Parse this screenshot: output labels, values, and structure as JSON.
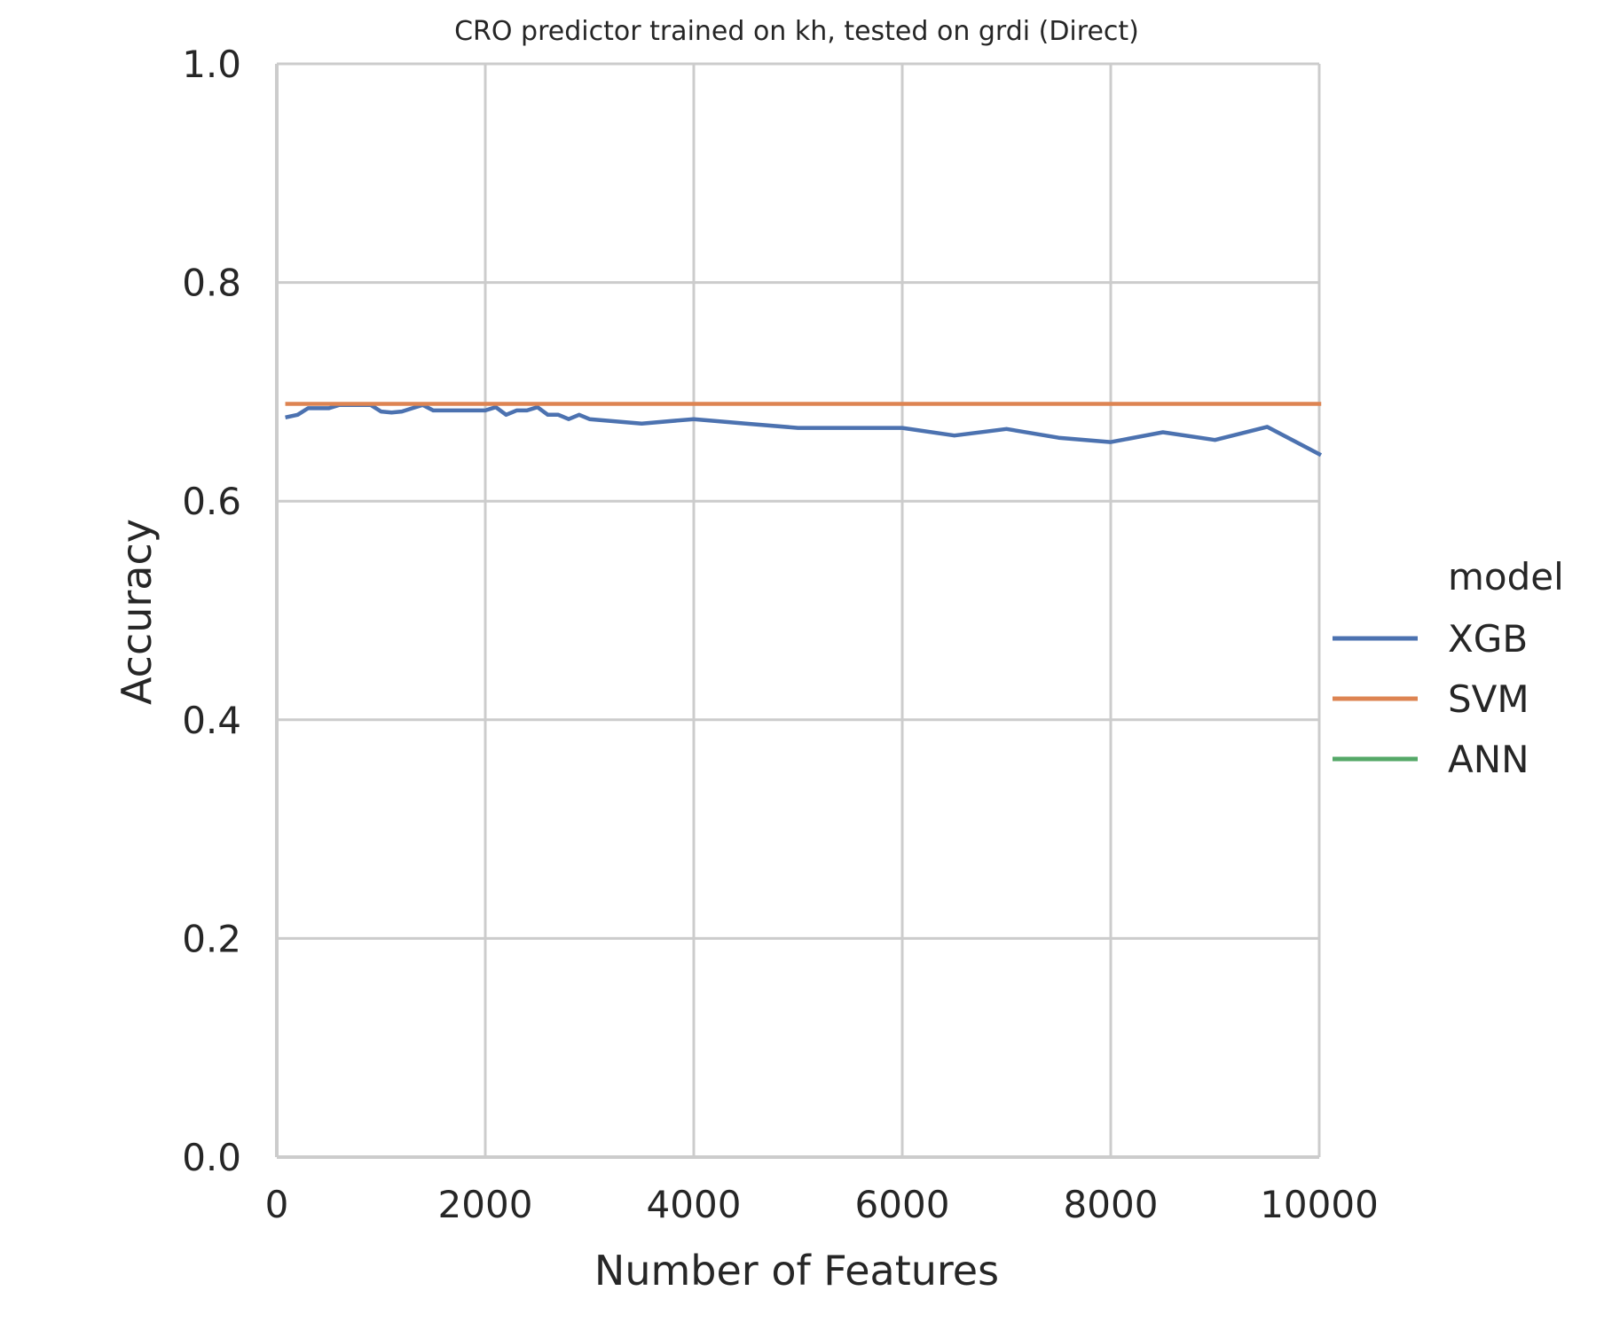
{
  "chart_data": {
    "type": "line",
    "title": "CRO predictor trained on kh, tested on grdi (Direct)",
    "xlabel": "Number of Features",
    "ylabel": "Accuracy",
    "xlim": [
      0,
      10000
    ],
    "ylim": [
      0.0,
      1.0
    ],
    "xticks": [
      0,
      2000,
      4000,
      6000,
      8000,
      10000
    ],
    "xtick_labels": [
      "0",
      "2000",
      "4000",
      "6000",
      "8000",
      "10000"
    ],
    "yticks": [
      0.0,
      0.2,
      0.4,
      0.6,
      0.8,
      1.0
    ],
    "ytick_labels": [
      "0.0",
      "0.2",
      "0.4",
      "0.6",
      "0.8",
      "1.0"
    ],
    "grid": true,
    "legend": {
      "title": "model",
      "placement": "right"
    },
    "series": [
      {
        "name": "XGB",
        "color": "#4c72b0",
        "x": [
          100,
          200,
          300,
          400,
          500,
          600,
          700,
          800,
          900,
          1000,
          1100,
          1200,
          1300,
          1400,
          1500,
          1600,
          1700,
          1800,
          1900,
          2000,
          2100,
          2200,
          2300,
          2400,
          2500,
          2600,
          2700,
          2800,
          2900,
          3000,
          3500,
          4000,
          4500,
          5000,
          5500,
          6000,
          6500,
          7000,
          7500,
          8000,
          8500,
          9000,
          9500,
          10000
        ],
        "y": [
          0.677,
          0.679,
          0.685,
          0.685,
          0.685,
          0.688,
          0.688,
          0.688,
          0.688,
          0.682,
          0.681,
          0.682,
          0.685,
          0.688,
          0.683,
          0.683,
          0.683,
          0.683,
          0.683,
          0.683,
          0.686,
          0.679,
          0.683,
          0.683,
          0.686,
          0.679,
          0.679,
          0.675,
          0.679,
          0.675,
          0.671,
          0.675,
          0.671,
          0.667,
          0.667,
          0.667,
          0.66,
          0.666,
          0.658,
          0.654,
          0.663,
          0.656,
          0.668,
          0.643
        ]
      },
      {
        "name": "SVM",
        "color": "#dd8452",
        "x": [
          100,
          10000
        ],
        "y": [
          0.689,
          0.689
        ]
      },
      {
        "name": "ANN",
        "color": "#55a868",
        "x": [],
        "y": []
      }
    ]
  }
}
